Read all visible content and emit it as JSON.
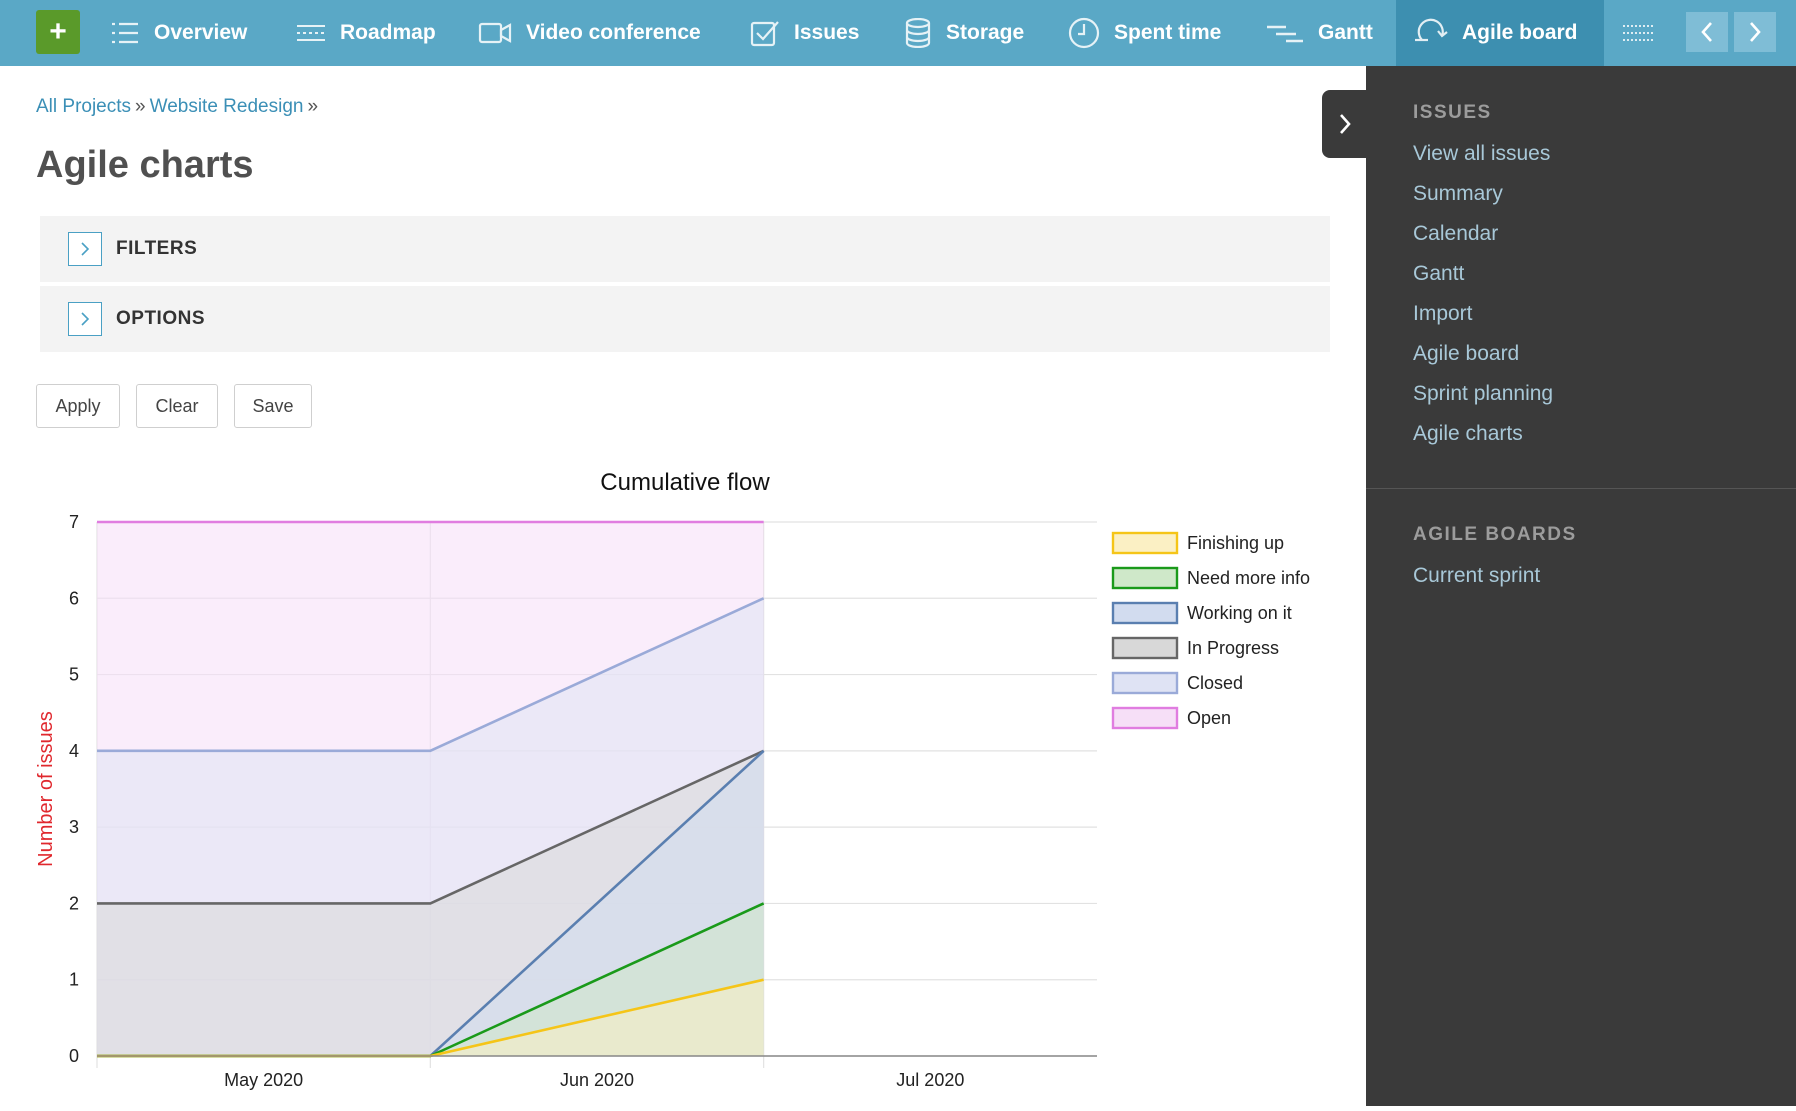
{
  "topnav": {
    "add_label": "+",
    "items": [
      {
        "label": "Overview",
        "icon": "list-icon"
      },
      {
        "label": "Roadmap",
        "icon": "roadmap-icon"
      },
      {
        "label": "Video conference",
        "icon": "video-icon"
      },
      {
        "label": "Issues",
        "icon": "checkbox-icon"
      },
      {
        "label": "Storage",
        "icon": "database-icon"
      },
      {
        "label": "Spent time",
        "icon": "clock-icon"
      },
      {
        "label": "Gantt",
        "icon": "gantt-icon"
      },
      {
        "label": "Agile board",
        "icon": "agile-icon",
        "active": true
      }
    ]
  },
  "breadcrumb": {
    "root": "All Projects",
    "sep": "»",
    "project": "Website Redesign",
    "sep2": "»"
  },
  "page": {
    "title": "Agile charts"
  },
  "panels": {
    "filters": "FILTERS",
    "options": "OPTIONS"
  },
  "buttons": {
    "apply": "Apply",
    "clear": "Clear",
    "save": "Save"
  },
  "sidebar": {
    "issues_heading": "ISSUES",
    "issues_links": [
      "View all issues",
      "Summary",
      "Calendar",
      "Gantt",
      "Import",
      "Agile board",
      "Sprint planning",
      "Agile charts"
    ],
    "boards_heading": "AGILE BOARDS",
    "boards_links": [
      "Current sprint"
    ]
  },
  "colors": {
    "topbar": "#5aa8c6",
    "active_tab": "#3d8fb0",
    "sidebar_bg": "#3a3a3a",
    "link": "#3b8fb6",
    "ylabel": "#e0282e"
  },
  "chart_data": {
    "type": "area",
    "title": "Cumulative flow",
    "xlabel": "",
    "ylabel": "Number of issues",
    "x": [
      "May 2020",
      "Jun 2020",
      "Jul 2020"
    ],
    "ylim": [
      0,
      7
    ],
    "yticks": [
      0,
      1,
      2,
      3,
      4,
      5,
      6,
      7
    ],
    "stacked_cumulative": true,
    "grid": true,
    "legend_position": "right",
    "series": [
      {
        "name": "Finishing up",
        "color": "#f5c518",
        "fill": "#fbf0c4",
        "values": [
          0,
          0,
          1
        ]
      },
      {
        "name": "Need more info",
        "color": "#1a9a1a",
        "fill": "#cfe8c9",
        "values": [
          0,
          0,
          2
        ]
      },
      {
        "name": "Working on it",
        "color": "#5a7fb0",
        "fill": "#d2dcef",
        "values": [
          0,
          0,
          4
        ]
      },
      {
        "name": "In Progress",
        "color": "#666666",
        "fill": "#d8d8d8",
        "values": [
          2,
          2,
          4
        ]
      },
      {
        "name": "Closed",
        "color": "#9aaad8",
        "fill": "#dfe3f4",
        "values": [
          4,
          4,
          6
        ]
      },
      {
        "name": "Open",
        "color": "#e07de0",
        "fill": "#f6dff7",
        "values": [
          7,
          7,
          7
        ]
      }
    ]
  }
}
